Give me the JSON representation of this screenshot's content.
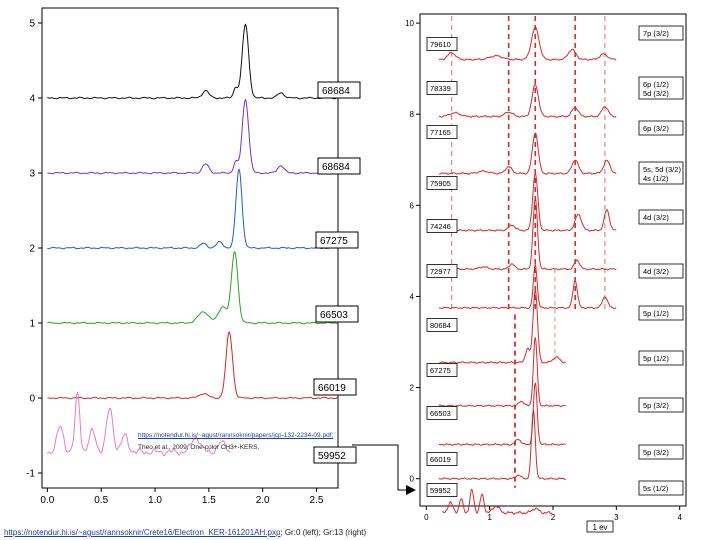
{
  "chart_data": [
    {
      "type": "line",
      "panel": "left",
      "xlim": [
        -0.05,
        2.7
      ],
      "ylim": [
        -1.2,
        5.2
      ],
      "xticks": [
        "0.0",
        "0.5",
        "1.0",
        "1.5",
        "2.0",
        "2.5"
      ],
      "xtick_values": [
        0.0,
        0.5,
        1.0,
        1.5,
        2.0,
        2.5
      ],
      "yticks": [
        "-1",
        "0",
        "1",
        "2",
        "3",
        "4",
        "5"
      ],
      "ytick_values": [
        -1,
        0,
        1,
        2,
        3,
        4,
        5
      ],
      "grid": false,
      "series": [
        {
          "name": "68684",
          "color": "#111111",
          "offset": 4,
          "peaks": [
            [
              1.84,
              0.98,
              0.03
            ],
            [
              1.47,
              0.1,
              0.03
            ],
            [
              2.17,
              0.07,
              0.03
            ],
            [
              1.75,
              0.14,
              0.02
            ]
          ]
        },
        {
          "name": "68684",
          "color": "#7b2fc9",
          "offset": 3,
          "peaks": [
            [
              1.84,
              0.98,
              0.03
            ],
            [
              1.47,
              0.12,
              0.03
            ],
            [
              2.17,
              0.1,
              0.03
            ],
            [
              1.75,
              0.15,
              0.02
            ]
          ]
        },
        {
          "name": "67275",
          "color": "#1f5fbf",
          "offset": 2,
          "peaks": [
            [
              1.78,
              1.05,
              0.028
            ],
            [
              1.6,
              0.08,
              0.03
            ],
            [
              1.45,
              0.06,
              0.03
            ]
          ]
        },
        {
          "name": "66503",
          "color": "#2aa02a",
          "offset": 1,
          "peaks": [
            [
              1.74,
              0.95,
              0.03
            ],
            [
              1.45,
              0.15,
              0.05
            ],
            [
              1.63,
              0.22,
              0.04
            ]
          ]
        },
        {
          "name": "66019",
          "color": "#d62728",
          "offset": 0,
          "peaks": [
            [
              1.69,
              0.88,
              0.03
            ],
            [
              1.45,
              0.06,
              0.04
            ]
          ]
        },
        {
          "name": "59952",
          "color": "#e87cc0",
          "offset": -1,
          "peaks": [
            [
              0.28,
              0.78,
              0.022
            ],
            [
              0.58,
              0.58,
              0.03
            ],
            [
              0.12,
              0.34,
              0.03
            ],
            [
              0.42,
              0.28,
              0.03
            ],
            [
              0.72,
              0.22,
              0.03
            ],
            [
              1.38,
              0.2,
              0.04
            ],
            [
              1.62,
              0.12,
              0.04
            ]
          ]
        }
      ],
      "box_labels": [
        "68684",
        "68684",
        "67275",
        "66503",
        "66019",
        "59952"
      ]
    },
    {
      "type": "line",
      "panel": "right",
      "xlim": [
        -0.1,
        4.1
      ],
      "ylim": [
        -0.6,
        10.2
      ],
      "xticks": [
        "0",
        "1",
        "2",
        "3",
        "4"
      ],
      "xtick_values": [
        0,
        1,
        2,
        3,
        4
      ],
      "yticks": [
        "0",
        "2",
        "4",
        "6",
        "8",
        "10"
      ],
      "ytick_values": [
        0,
        2,
        4,
        6,
        8,
        10
      ],
      "xlabel": "1 ev",
      "grid": false,
      "color": "#d42a2a",
      "vlines_long": [
        0.4,
        1.3,
        1.72,
        2.35,
        2.82
      ],
      "vlines_short": [
        1.4
      ],
      "series": [
        {
          "name": "79610",
          "offset": 9.2,
          "peaks": [
            [
              1.72,
              0.7,
              0.06
            ],
            [
              0.4,
              0.15,
              0.06
            ],
            [
              2.3,
              0.22,
              0.06
            ],
            [
              2.8,
              0.12,
              0.06
            ],
            [
              1.1,
              0.08,
              0.1
            ]
          ]
        },
        {
          "name": "78339",
          "offset": 7.95,
          "peaks": [
            [
              1.72,
              0.7,
              0.05
            ],
            [
              2.35,
              0.2,
              0.05
            ],
            [
              2.82,
              0.22,
              0.05
            ],
            [
              1.3,
              0.1,
              0.06
            ],
            [
              0.45,
              0.08,
              0.08
            ]
          ]
        },
        {
          "name": "77165",
          "offset": 6.7,
          "peaks": [
            [
              1.72,
              0.9,
              0.045
            ],
            [
              2.35,
              0.3,
              0.05
            ],
            [
              2.85,
              0.28,
              0.05
            ],
            [
              1.3,
              0.15,
              0.05
            ],
            [
              0.9,
              0.05,
              0.08
            ]
          ]
        },
        {
          "name": "75905",
          "offset": 5.45,
          "peaks": [
            [
              1.72,
              1.25,
              0.04
            ],
            [
              2.4,
              0.35,
              0.05
            ],
            [
              2.85,
              0.45,
              0.04
            ],
            [
              1.35,
              0.12,
              0.05
            ]
          ]
        },
        {
          "name": "74246",
          "offset": 4.6,
          "peaks": [
            [
              1.72,
              1.55,
              0.035
            ],
            [
              2.38,
              0.2,
              0.04
            ],
            [
              1.35,
              0.12,
              0.04
            ],
            [
              0.9,
              0.05,
              0.06
            ]
          ]
        },
        {
          "name": "72977",
          "offset": 3.75,
          "peaks": [
            [
              1.72,
              0.95,
              0.03
            ],
            [
              2.35,
              0.6,
              0.035
            ],
            [
              2.82,
              0.25,
              0.04
            ]
          ]
        },
        {
          "name": "80684",
          "offset": 2.55,
          "peaks": [
            [
              1.72,
              1.6,
              0.035
            ],
            [
              1.6,
              0.3,
              0.035
            ],
            [
              2.05,
              0.12,
              0.05
            ]
          ]
        },
        {
          "name": "67275",
          "offset": 1.6,
          "peaks": [
            [
              1.72,
              1.5,
              0.03
            ],
            [
              1.5,
              0.1,
              0.04
            ]
          ]
        },
        {
          "name": "66503",
          "offset": 0.75,
          "peaks": [
            [
              1.72,
              1.35,
              0.03
            ],
            [
              1.45,
              0.12,
              0.04
            ]
          ]
        },
        {
          "name": "66019",
          "offset": 0.0,
          "peaks": [
            [
              1.69,
              1.5,
              0.03
            ],
            [
              1.45,
              0.08,
              0.04
            ]
          ]
        },
        {
          "name": "59952",
          "offset": -0.75,
          "peaks": [
            [
              0.72,
              0.5,
              0.03
            ],
            [
              0.88,
              0.4,
              0.03
            ],
            [
              0.55,
              0.3,
              0.03
            ],
            [
              0.38,
              0.22,
              0.04
            ],
            [
              1.1,
              0.15,
              0.05
            ],
            [
              1.72,
              0.1,
              0.05
            ]
          ]
        }
      ],
      "box_labels": [
        "79610",
        "78339",
        "77165",
        "75905",
        "74246",
        "72977",
        "80684",
        "67275",
        "66503",
        "66019",
        "59952"
      ],
      "state_labels": [
        [
          "7p (3/2)"
        ],
        [
          "6p (1/2)",
          "5d (3/2)"
        ],
        [
          "6p (3/2)"
        ],
        [
          "5s, 5d (3/2)",
          "4s (1/2)"
        ],
        [
          "4d (3/2)"
        ],
        [
          "4d (3/2)"
        ],
        [
          "5p (1/2)"
        ],
        [
          "5p (1/2)"
        ],
        [
          "5p (3/2)"
        ],
        [
          "5p (3/2)"
        ],
        [
          "5s (1/2)"
        ]
      ]
    }
  ],
  "captions": {
    "url_small": "https://notendur.hi.is/~agust/rannsoknir/papers/jcp-132-2234-09.pdf;",
    "ref": "Theo et al., 2009; One-color CH3+-KERS,",
    "foot_link": "https://notendur.hi.is/~agust/rannsoknir/Crete16/Electron_KER-161201AH.pxp",
    "foot_text": "; Gr:0 (left); Gr:13 (right)"
  }
}
